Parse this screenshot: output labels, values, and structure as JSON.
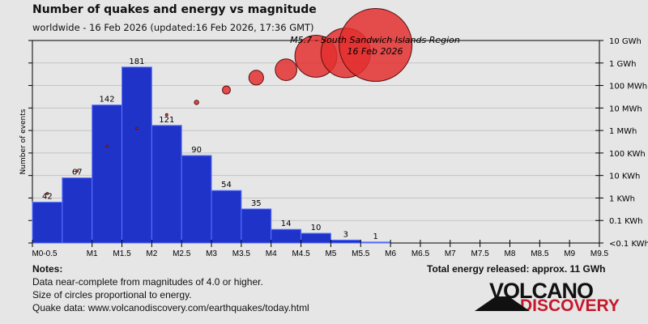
{
  "header": {
    "title": "Number of quakes and energy vs magnitude",
    "subtitle": "worldwide - 16 Feb 2026 (updated:16 Feb 2026, 17:36 GMT)"
  },
  "chart_data": {
    "type": "bar",
    "title": "Number of quakes and energy vs magnitude",
    "ylabel": "Number of events",
    "categories": [
      "M0-0.5",
      "M0.5-1",
      "M1-1.5",
      "M1.5-2",
      "M2-2.5",
      "M2.5-3",
      "M3-3.5",
      "M3.5-4",
      "M4-4.5",
      "M4.5-5",
      "M5-5.5",
      "M5.5-6"
    ],
    "counts": [
      42,
      67,
      142,
      181,
      121,
      90,
      54,
      35,
      14,
      10,
      3,
      1
    ],
    "energy_log10_wh": [
      3.2,
      4.2,
      5.3,
      6.1,
      6.7,
      7.25,
      7.8,
      8.35,
      8.7,
      9.3,
      9.45,
      9.8
    ],
    "x_tick_labels": [
      "M0-0.5",
      "M1",
      "M1.5",
      "M2",
      "M2.5",
      "M3",
      "M3.5",
      "M4",
      "M4.5",
      "M5",
      "M5.5",
      "M6",
      "M6.5",
      "M7",
      "M7.5",
      "M8",
      "M8.5",
      "M9",
      "M9.5"
    ],
    "energy_axis_labels": [
      "10 GWh",
      "1 GWh",
      "100 MWh",
      "10 MWh",
      "1 MWh",
      "100 KWh",
      "10 KWh",
      "1 KWh",
      "0.1 KWh",
      "<0.1 KWh"
    ],
    "annotation": {
      "line1": "M5.7 - South Sandwich Islands Region",
      "line2": "16 Feb 2026"
    },
    "colors": {
      "bar": "#1f33c8",
      "bar_edge": "#5a75ff",
      "last_bar": "#4a66ee",
      "circle": "#e32f2f"
    }
  },
  "footer": {
    "notes_title": "Notes:",
    "note1": "Data near-complete from magnitudes of 4.0 or higher.",
    "note2": "Size of circles proportional to energy.",
    "note3": "Quake data: www.volcanodiscovery.com/earthquakes/today.html",
    "total": "Total energy released: approx. 11 GWh"
  },
  "logo": {
    "line1": "VOLCANO",
    "line2": "DISCOVERY"
  }
}
